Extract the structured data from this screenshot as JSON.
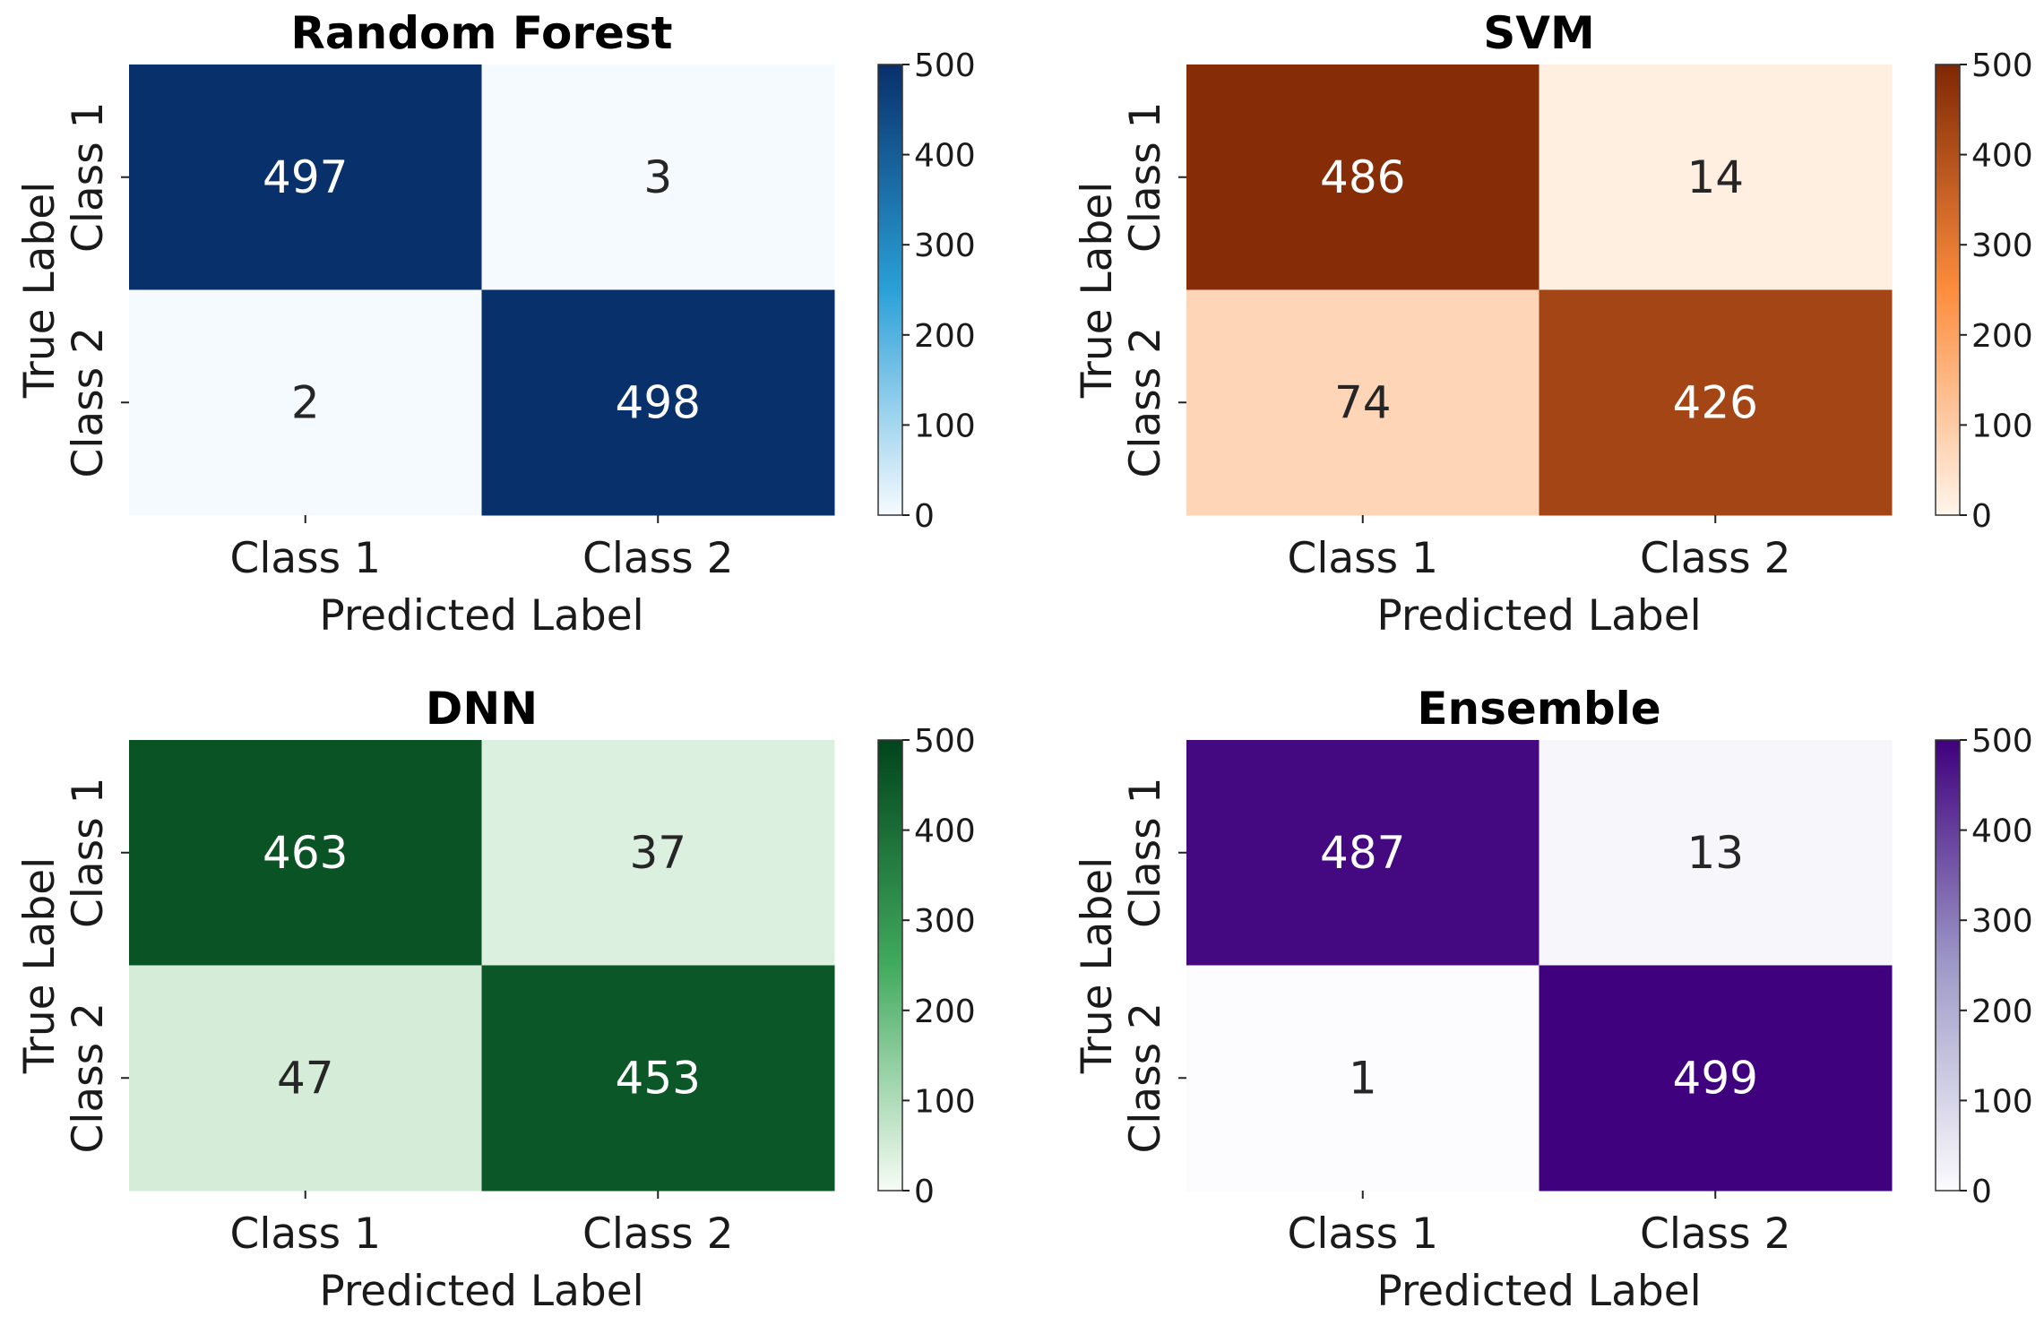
{
  "chart_data": [
    {
      "type": "heatmap",
      "title": "Random Forest",
      "xlabel": "Predicted Label",
      "ylabel": "True Label",
      "x_categories": [
        "Class 1",
        "Class 2"
      ],
      "y_categories": [
        "Class 1",
        "Class 2"
      ],
      "matrix": [
        [
          497,
          3
        ],
        [
          2,
          498
        ]
      ],
      "colormap": "Blues",
      "color_low": "#f7fbff",
      "color_mid": "#2aa0d8",
      "color_high": "#08306b",
      "colorbar": {
        "min": 0,
        "max": 500,
        "ticks": [
          0,
          100,
          200,
          300,
          400,
          500
        ]
      }
    },
    {
      "type": "heatmap",
      "title": "SVM",
      "xlabel": "Predicted Label",
      "ylabel": "True Label",
      "x_categories": [
        "Class 1",
        "Class 2"
      ],
      "y_categories": [
        "Class 1",
        "Class 2"
      ],
      "matrix": [
        [
          486,
          14
        ],
        [
          74,
          426
        ]
      ],
      "colormap": "Oranges",
      "color_low": "#fff5eb",
      "color_mid": "#fd8d3c",
      "color_high": "#7f2704",
      "colorbar": {
        "min": 0,
        "max": 500,
        "ticks": [
          0,
          100,
          200,
          300,
          400,
          500
        ]
      }
    },
    {
      "type": "heatmap",
      "title": "DNN",
      "xlabel": "Predicted Label",
      "ylabel": "True Label",
      "x_categories": [
        "Class 1",
        "Class 2"
      ],
      "y_categories": [
        "Class 1",
        "Class 2"
      ],
      "matrix": [
        [
          463,
          37
        ],
        [
          47,
          453
        ]
      ],
      "colormap": "Greens",
      "color_low": "#f7fcf5",
      "color_mid": "#41ab5d",
      "color_high": "#00441b",
      "colorbar": {
        "min": 0,
        "max": 500,
        "ticks": [
          0,
          100,
          200,
          300,
          400,
          500
        ]
      }
    },
    {
      "type": "heatmap",
      "title": "Ensemble",
      "xlabel": "Predicted Label",
      "ylabel": "True Label",
      "x_categories": [
        "Class 1",
        "Class 2"
      ],
      "y_categories": [
        "Class 1",
        "Class 2"
      ],
      "matrix": [
        [
          487,
          13
        ],
        [
          1,
          499
        ]
      ],
      "colormap": "Purples",
      "color_low": "#fcfbfd",
      "color_mid": "#9e9ac8",
      "color_high": "#3f007d",
      "colorbar": {
        "min": 0,
        "max": 500,
        "ticks": [
          0,
          100,
          200,
          300,
          400,
          500
        ]
      }
    }
  ],
  "text_colors": {
    "on_dark": "#ffffff",
    "on_light": "#262626"
  }
}
